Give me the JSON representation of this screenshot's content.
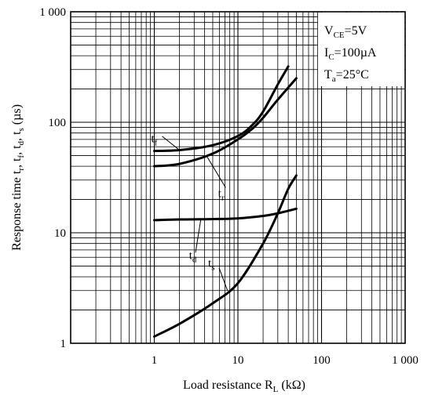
{
  "chart_data": {
    "type": "line",
    "x_scale": "log",
    "y_scale": "log",
    "xlim": [
      0.1,
      1000
    ],
    "ylim": [
      1,
      1000
    ],
    "grid": true,
    "x_ticks": [
      1,
      10,
      100,
      1000
    ],
    "x_tick_labels": [
      "1",
      "10",
      "100",
      "1 000"
    ],
    "y_ticks": [
      1,
      10,
      100,
      1000
    ],
    "y_tick_labels": [
      "1",
      "10",
      "100",
      "1 000"
    ],
    "xlabel": {
      "main": "Load resistance R",
      "sub": "L",
      "tail": " (kΩ)"
    },
    "ylabel": {
      "main": "Response time t",
      "parts": [
        {
          "sub": "r",
          "sep": ", t"
        },
        {
          "sub": "f",
          "sep": ", t"
        },
        {
          "sub": "d",
          "sep": ", t"
        },
        {
          "sub": "s",
          "sep": " (µs)"
        }
      ]
    },
    "conditions": [
      {
        "main": "V",
        "sub": "CE",
        "tail": "=5V"
      },
      {
        "main": "I",
        "sub": "C",
        "tail": "=100µA"
      },
      {
        "main": "T",
        "sub": "a",
        "tail": "=25°C"
      }
    ],
    "series": [
      {
        "name": "t",
        "sub": "f",
        "x": [
          1,
          2,
          5,
          10,
          15,
          20,
          30,
          40
        ],
        "y": [
          55,
          56,
          62,
          75,
          95,
          125,
          220,
          320
        ]
      },
      {
        "name": "t",
        "sub": "r",
        "x": [
          1,
          2,
          5,
          10,
          15,
          20,
          30,
          50
        ],
        "y": [
          40,
          42,
          52,
          70,
          88,
          110,
          160,
          250
        ]
      },
      {
        "name": "t",
        "sub": "d",
        "x": [
          1,
          2,
          5,
          10,
          20,
          30,
          50
        ],
        "y": [
          13,
          13.2,
          13.3,
          13.5,
          14.2,
          15,
          16.5
        ]
      },
      {
        "name": "t",
        "sub": "s",
        "x": [
          1,
          2,
          5,
          10,
          20,
          30,
          40,
          50
        ],
        "y": [
          1.15,
          1.5,
          2.3,
          3.5,
          8,
          15,
          25,
          33
        ]
      }
    ]
  }
}
